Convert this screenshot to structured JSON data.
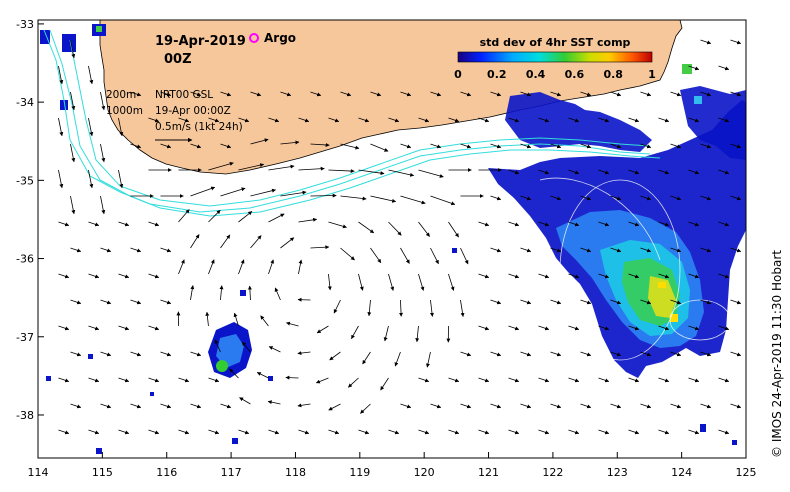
{
  "header": {
    "date": "19-Apr-2019",
    "time": "00Z",
    "legend_label": "Argo",
    "legend_color": "#ff00ff"
  },
  "info": {
    "depth1": "200m",
    "depth2": "1000m",
    "product": "NRT00 GSL",
    "datetime": "19-Apr 00:00Z",
    "scale": "0.5m/s (1kt 24h)"
  },
  "colorbar": {
    "title": "std dev of 4hr SST comp",
    "ticks": [
      "0",
      "0.2",
      "0.4",
      "0.6",
      "0.8",
      "1"
    ]
  },
  "credit": "© IMOS 24-Apr-2019 11:30 Hobart",
  "colors": {
    "land": "#f7c79c",
    "contour": "#33dddd",
    "high": "#0000cc",
    "mid": "#33bbee",
    "green": "#44cc44"
  },
  "axes": {
    "x_ticks": [
      "114",
      "115",
      "116",
      "117",
      "118",
      "119",
      "120",
      "121",
      "122",
      "123",
      "124",
      "125"
    ],
    "y_ticks": [
      "-33",
      "-34",
      "-35",
      "-36",
      "-37",
      "-38"
    ],
    "x_range": [
      114,
      125
    ],
    "y_range": [
      -38.55,
      -32.95
    ]
  }
}
